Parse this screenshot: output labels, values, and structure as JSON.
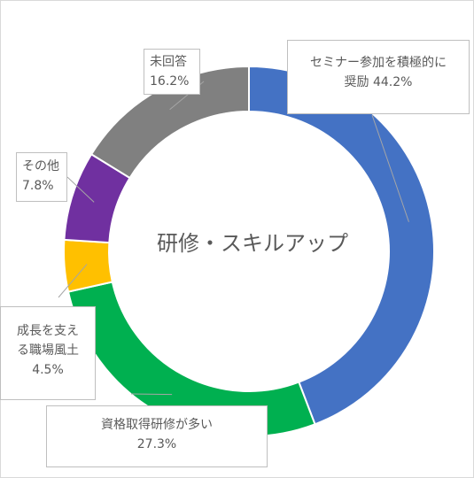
{
  "chart_data": {
    "type": "pie",
    "subtype": "doughnut",
    "center_label": "研修・スキルアップ",
    "slices": [
      {
        "label_lines": [
          "セミナー参加を積極的に",
          "奨励"
        ],
        "value": 44.2,
        "value_text": "44.2%",
        "color": "#4472c4"
      },
      {
        "label_lines": [
          "資格取得研修が多い"
        ],
        "value": 27.3,
        "value_text": "27.3%",
        "color": "#00b050"
      },
      {
        "label_lines": [
          "成長を支え",
          "る職場風土"
        ],
        "value": 4.5,
        "value_text": "4.5%",
        "color": "#ffc000"
      },
      {
        "label_lines": [
          "その他"
        ],
        "value": 7.8,
        "value_text": "7.8%",
        "color": "#7030a0"
      },
      {
        "label_lines": [
          "未回答"
        ],
        "value": 16.2,
        "value_text": "16.2%",
        "color": "#808080"
      }
    ],
    "legend": "none",
    "start_angle": "12 o'clock",
    "direction": "clockwise"
  }
}
